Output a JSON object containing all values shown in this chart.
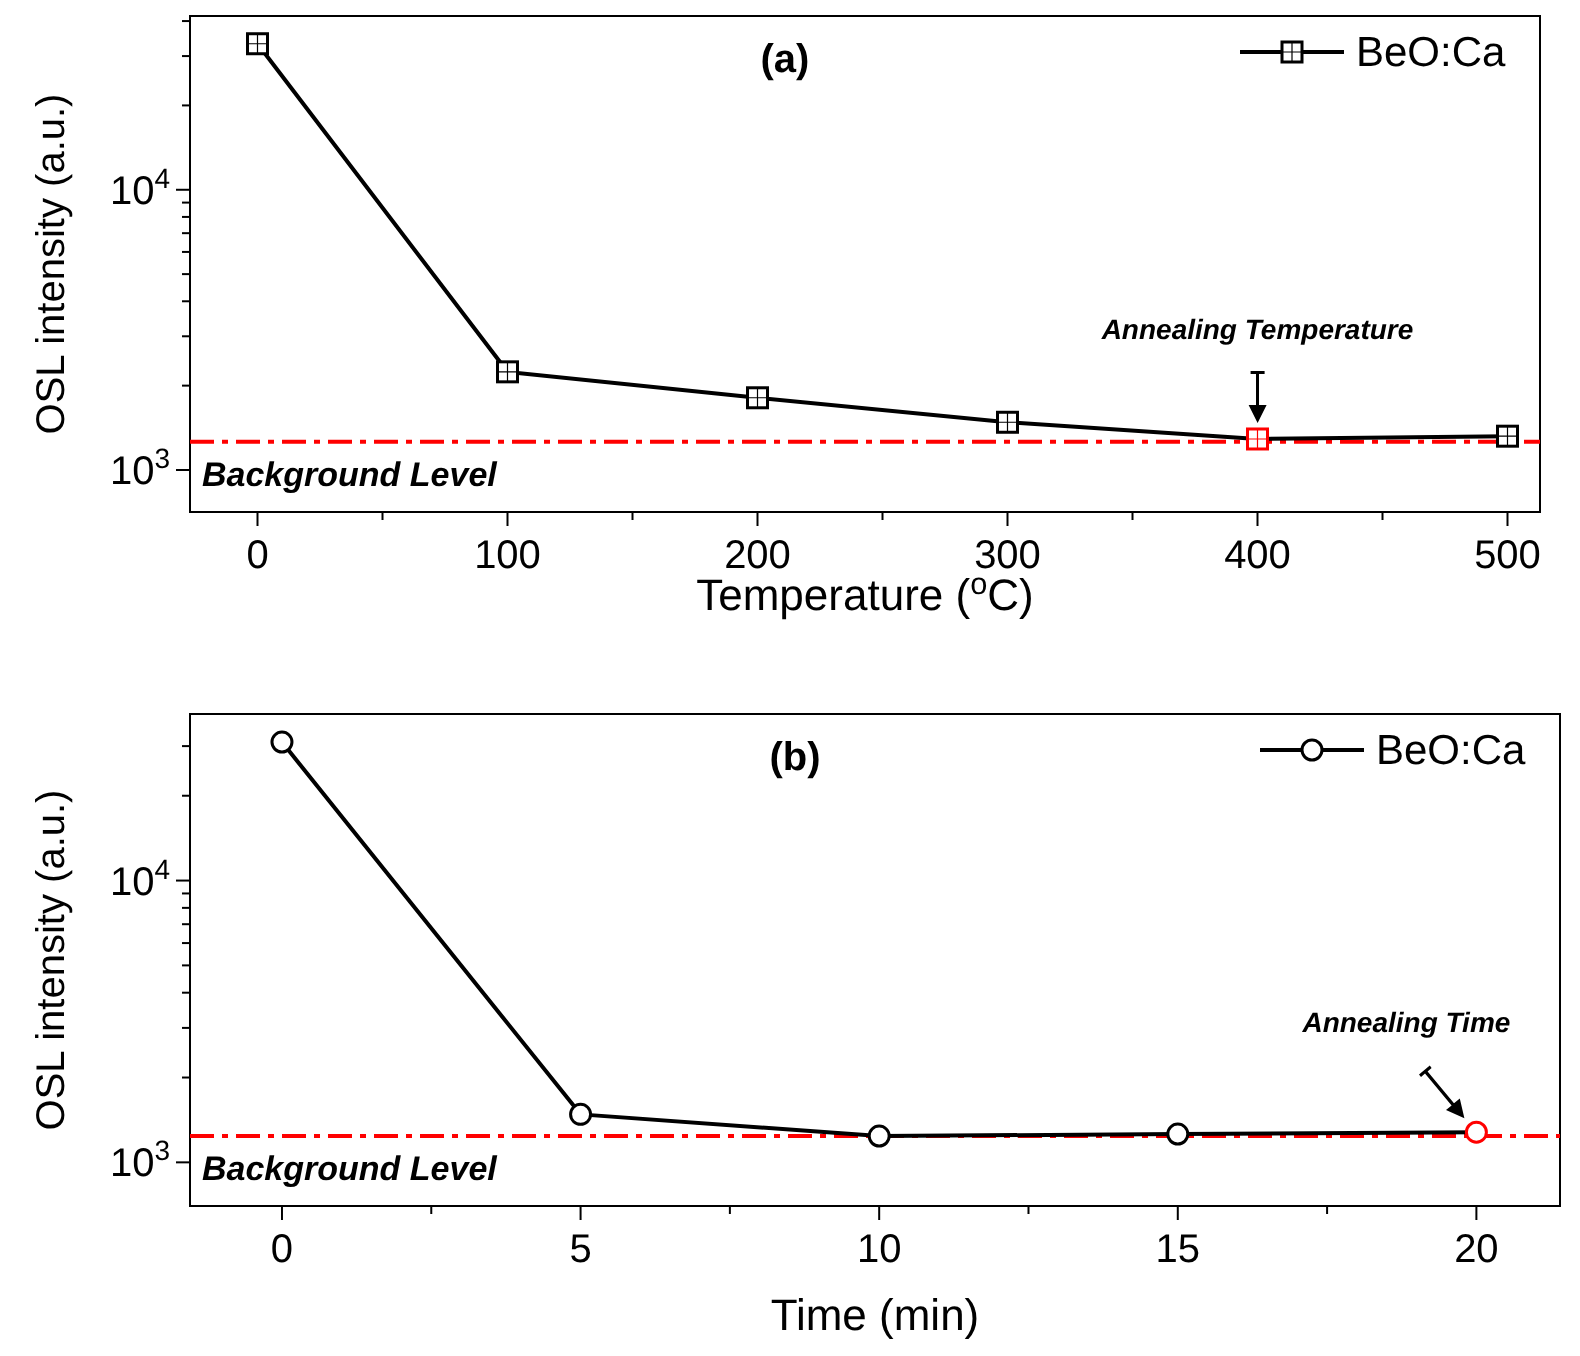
{
  "chart_data": [
    {
      "type": "line",
      "title": "(a)",
      "xlabel": "Temperature ($^{o}$C)",
      "ylabel": "OSL intensity (a.u.)",
      "x": [
        0,
        100,
        200,
        300,
        400,
        500
      ],
      "series": [
        {
          "name": "BeO:Ca",
          "color": "#000000",
          "colors": [
            "#000000",
            "#000000",
            "#000000",
            "#000000",
            "#ff0000",
            "#000000"
          ],
          "values": [
            33200,
            2240,
            1810,
            1480,
            1290,
            1320
          ]
        }
      ],
      "xlim": [
        -27,
        513
      ],
      "xticks": [
        0,
        {
          "value": 50,
          "label": null
        },
        100,
        {
          "value": 150,
          "label": null
        },
        200,
        {
          "value": 250,
          "label": null
        },
        300,
        {
          "value": 350,
          "label": null
        },
        400,
        {
          "value": 450,
          "label": null
        },
        500
      ],
      "ylim": [
        708,
        41700
      ],
      "yticks": [
        {
          "value": 1000,
          "label": "10$^{3}$"
        },
        {
          "value": 2000,
          "label": null
        },
        {
          "value": 3000,
          "label": null
        },
        {
          "value": 4000,
          "label": null
        },
        {
          "value": 5000,
          "label": null
        },
        {
          "value": 6000,
          "label": null
        },
        {
          "value": 7000,
          "label": null
        },
        {
          "value": 8000,
          "label": null
        },
        {
          "value": 9000,
          "label": null
        },
        {
          "value": 10000,
          "label": "10$^{4}$"
        },
        {
          "value": 20000,
          "label": null
        },
        {
          "value": 30000,
          "label": null
        },
        {
          "value": 40000,
          "label": null
        }
      ],
      "log": "y",
      "grid": false,
      "legend": "top right",
      "marker": "square",
      "line_style": "solid",
      "ref_lines": [
        {
          "axis": "y",
          "value": 1260,
          "label": "Background Level",
          "color": "#ff0000",
          "line_style": "dashed"
        }
      ],
      "annotations": [
        "Annealing Temperature"
      ]
    },
    {
      "type": "line",
      "title": "(b)",
      "xlabel": "Time (min)",
      "ylabel": "OSL intensity (a.u.)",
      "x": [
        0,
        5,
        10,
        15,
        20
      ],
      "series": [
        {
          "name": "BeO:Ca",
          "color": "#000000",
          "colors": [
            "#000000",
            "#000000",
            "#000000",
            "#000000",
            "#ff0000"
          ],
          "values": [
            31000,
            1480,
            1240,
            1260,
            1280
          ]
        }
      ],
      "xlim": [
        -1.54,
        21.4
      ],
      "xticks": [
        0,
        {
          "value": 2.5,
          "label": null
        },
        5,
        {
          "value": 7.5,
          "label": null
        },
        10,
        {
          "value": 12.5,
          "label": null
        },
        15,
        {
          "value": 17.5,
          "label": null
        },
        20
      ],
      "ylim": [
        700,
        39000
      ],
      "yticks": [
        {
          "value": 1000,
          "label": "10$^{3}$"
        },
        {
          "value": 2000,
          "label": null
        },
        {
          "value": 3000,
          "label": null
        },
        {
          "value": 4000,
          "label": null
        },
        {
          "value": 5000,
          "label": null
        },
        {
          "value": 6000,
          "label": null
        },
        {
          "value": 7000,
          "label": null
        },
        {
          "value": 8000,
          "label": null
        },
        {
          "value": 9000,
          "label": null
        },
        {
          "value": 10000,
          "label": "10$^{4}$"
        },
        {
          "value": 20000,
          "label": null
        },
        {
          "value": 30000,
          "label": null
        }
      ],
      "log": "y",
      "grid": false,
      "legend": "top right",
      "marker": "circle",
      "line_style": "solid",
      "ref_lines": [
        {
          "axis": "y",
          "value": 1240,
          "label": "Background Level",
          "color": "#ff0000",
          "line_style": "dashed"
        }
      ],
      "annotations": [
        "Annealing Time"
      ]
    }
  ]
}
